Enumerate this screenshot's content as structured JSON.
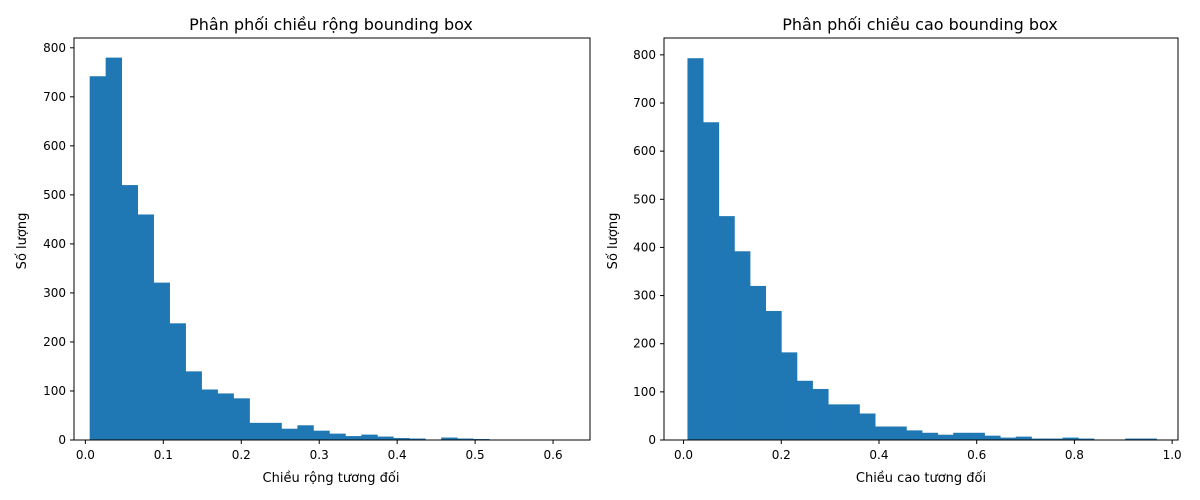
{
  "chart_data": [
    {
      "type": "bar",
      "title": "Phân phối chiều rộng bounding box",
      "xlabel": "Chiều rộng tương đối",
      "ylabel": "Số lượng",
      "xlim": [
        -0.0146,
        0.6474
      ],
      "ylim": [
        0,
        820
      ],
      "xticks": [
        0.0,
        0.1,
        0.2,
        0.3,
        0.4,
        0.5,
        0.6
      ],
      "xtick_labels": [
        "0.0",
        "0.1",
        "0.2",
        "0.3",
        "0.4",
        "0.5",
        "0.6"
      ],
      "yticks": [
        0,
        100,
        200,
        300,
        400,
        500,
        600,
        700,
        800
      ],
      "ytick_labels": [
        "0",
        "100",
        "200",
        "300",
        "400",
        "500",
        "600",
        "700",
        "800"
      ],
      "bin_start": 0.0055,
      "bin_width": 0.0205,
      "values": [
        742,
        780,
        520,
        460,
        321,
        238,
        140,
        103,
        95,
        85,
        35,
        35,
        23,
        30,
        19,
        13,
        8,
        11,
        7,
        4,
        3,
        1,
        5,
        3,
        2,
        1,
        1,
        1,
        1,
        1
      ],
      "color": "#1f77b4",
      "grid": false
    },
    {
      "type": "bar",
      "title": "Phân phối chiều cao bounding box",
      "xlabel": "Chiều cao tương đối",
      "ylabel": "Số lượng",
      "xlim": [
        -0.04,
        1.012
      ],
      "ylim": [
        0,
        835
      ],
      "xticks": [
        0.0,
        0.2,
        0.4,
        0.6,
        0.8,
        1.0
      ],
      "xtick_labels": [
        "0.0",
        "0.2",
        "0.4",
        "0.6",
        "0.8",
        "1.0"
      ],
      "yticks": [
        0,
        100,
        200,
        300,
        400,
        500,
        600,
        700,
        800
      ],
      "ytick_labels": [
        "0",
        "100",
        "200",
        "300",
        "400",
        "500",
        "600",
        "700",
        "800"
      ],
      "bin_start": 0.008,
      "bin_width": 0.032,
      "values": [
        793,
        660,
        465,
        392,
        320,
        268,
        182,
        123,
        106,
        74,
        74,
        55,
        28,
        28,
        20,
        15,
        11,
        15,
        15,
        9,
        5,
        7,
        3,
        3,
        5,
        3,
        1,
        1,
        3,
        3
      ],
      "color": "#1f77b4",
      "grid": false
    }
  ]
}
